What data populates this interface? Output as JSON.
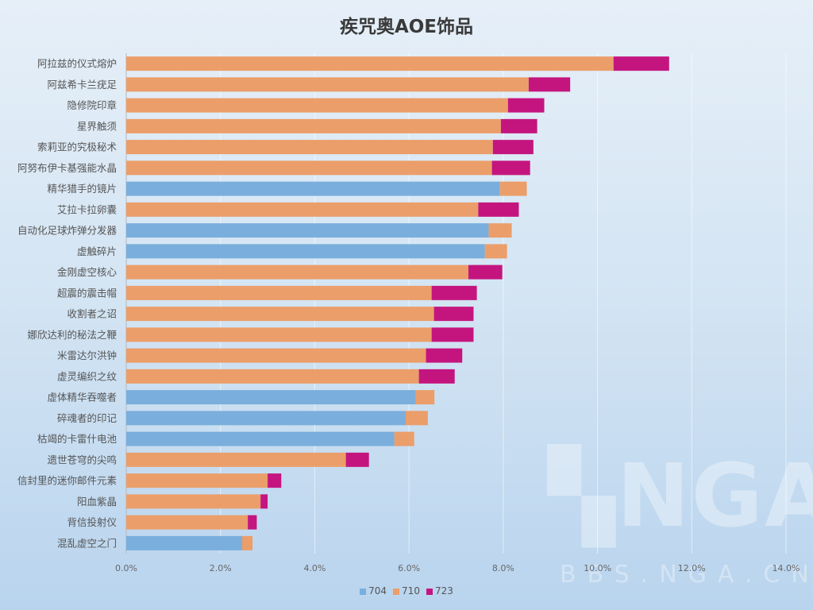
{
  "chart_data": {
    "type": "bar",
    "orientation": "horizontal",
    "stacked": true,
    "title": "疾咒奥AOE饰品",
    "categories": [
      "阿拉兹的仪式熔炉",
      "阿兹希卡兰疣足",
      "隐修院印章",
      "星界触须",
      "索莉亚的究极秘术",
      "阿努布伊卡基强能水晶",
      "精华猎手的镜片",
      "艾拉卡拉卵囊",
      "自动化足球炸弹分发器",
      "虚触碎片",
      "金刚虚空核心",
      "超震的震击帽",
      "收割者之诏",
      "娜欣达利的秘法之鞭",
      "米雷达尔洪钟",
      "虚灵编织之纹",
      "虚体精华吞噬者",
      "碎魂者的印记",
      "枯竭的卡雷什电池",
      "遗世苍穹的尖鸣",
      "信封里的迷你邮件元素",
      "阳血紫晶",
      "背信投射仪",
      "混乱虚空之门"
    ],
    "series": [
      {
        "name": "704",
        "color": "#7aaedc",
        "values": [
          0,
          0,
          0,
          0,
          0,
          0,
          7.93,
          0,
          7.69,
          7.61,
          0,
          0,
          0,
          0,
          0,
          0,
          6.14,
          5.93,
          5.69,
          0,
          0,
          0,
          0,
          2.46
        ]
      },
      {
        "name": "710",
        "color": "#eb9e6a",
        "values": [
          10.34,
          8.54,
          8.1,
          7.95,
          7.78,
          7.76,
          0.57,
          7.47,
          0.49,
          0.47,
          7.26,
          6.48,
          6.53,
          6.48,
          6.36,
          6.21,
          0.4,
          0.47,
          0.42,
          4.66,
          3.0,
          2.85,
          2.58,
          0.22
        ]
      },
      {
        "name": "723",
        "color": "#c4157f",
        "values": [
          1.18,
          0.88,
          0.77,
          0.77,
          0.86,
          0.81,
          0,
          0.86,
          0,
          0,
          0.72,
          0.96,
          0.84,
          0.89,
          0.77,
          0.76,
          0,
          0,
          0,
          0.49,
          0.29,
          0.15,
          0.19,
          0
        ]
      }
    ],
    "xlim": [
      0,
      14
    ],
    "xticks": [
      "0.0%",
      "2.0%",
      "4.0%",
      "6.0%",
      "8.0%",
      "10.0%",
      "12.0%",
      "14.0%"
    ],
    "xlabel": "",
    "ylabel": "",
    "grid": "vertical",
    "legend": "bottom"
  },
  "watermark": {
    "logo": "NGA",
    "site": "BBS.NGA.CN"
  }
}
